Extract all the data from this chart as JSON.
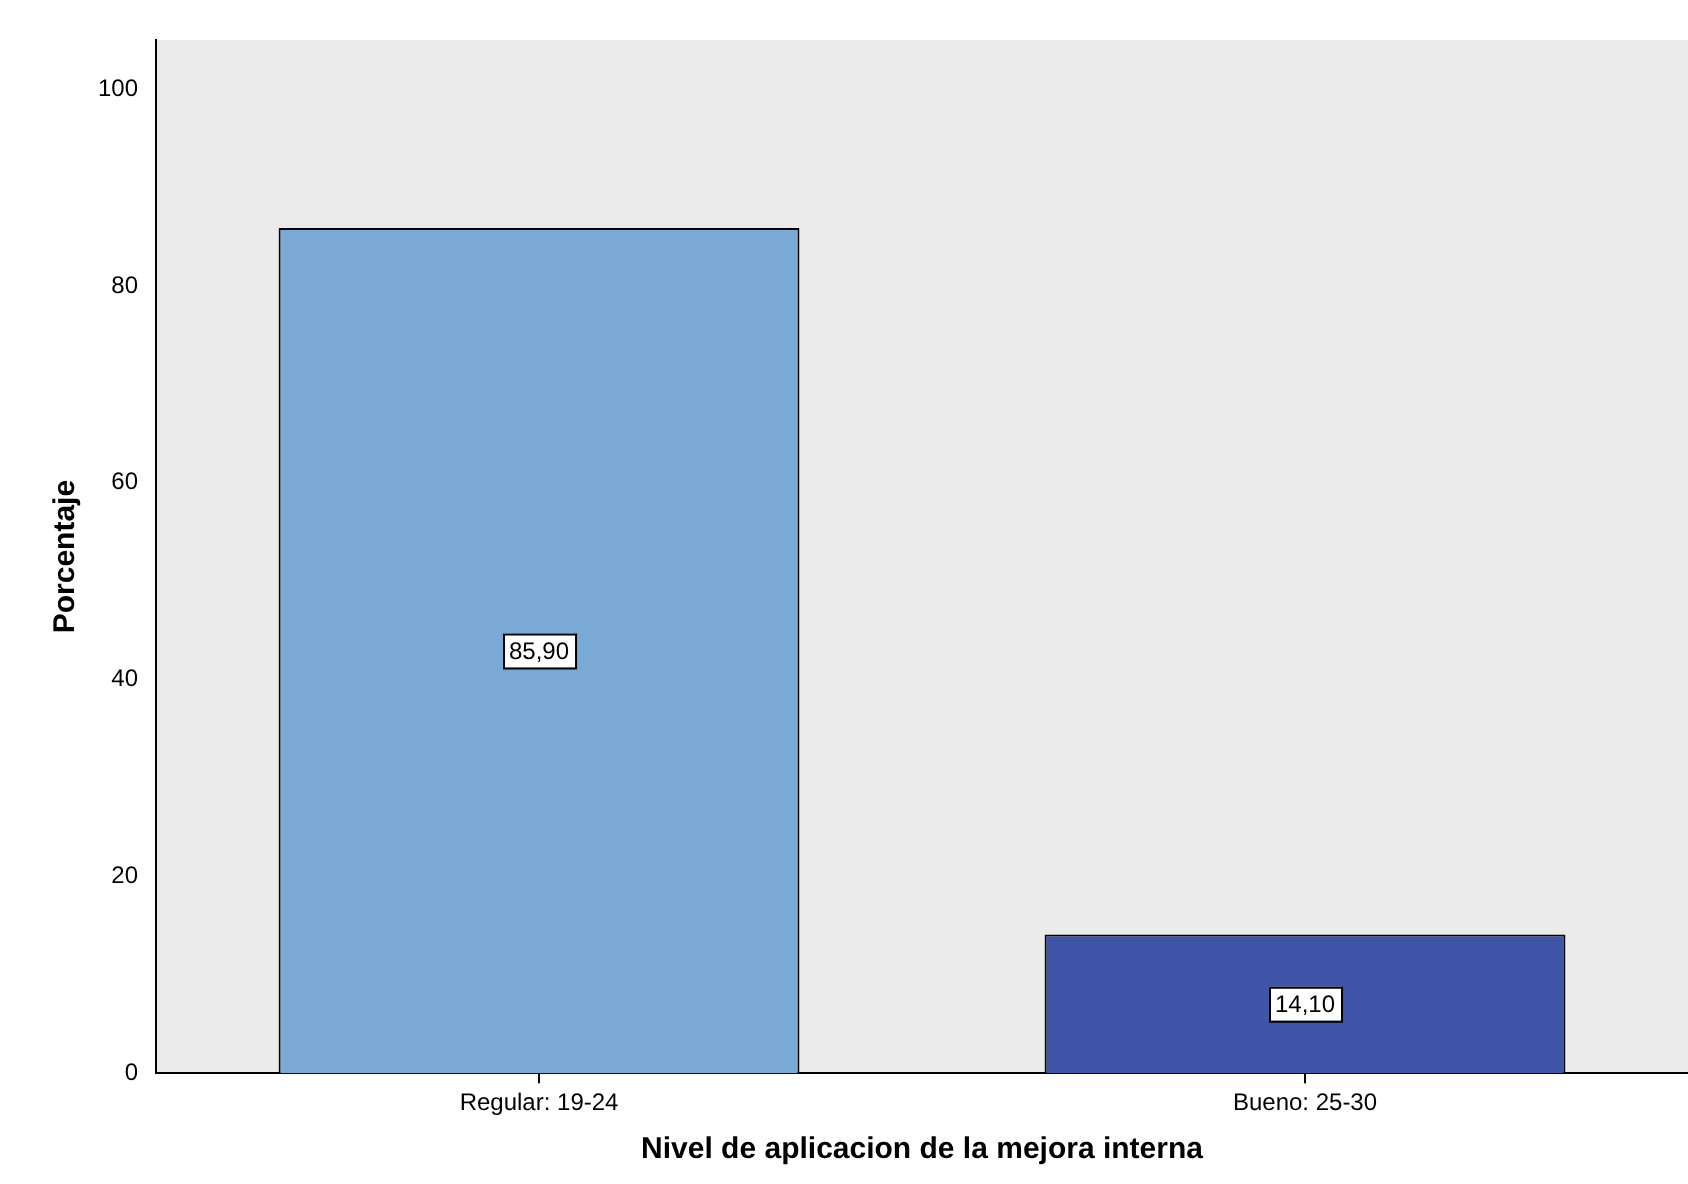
{
  "chart_data": {
    "type": "bar",
    "xlabel": "Nivel de aplicacion de la mejora interna",
    "ylabel": "Porcentaje",
    "categories": [
      "Regular: 19-24",
      "Bueno: 25-30"
    ],
    "values": [
      85.9,
      14.1
    ],
    "colors": [
      "#7aa9d6",
      "#3f56a8"
    ],
    "value_labels": [
      "85,90",
      "14,10"
    ],
    "ylim": [
      0,
      105
    ],
    "yticks": [
      0,
      20,
      40,
      60,
      80,
      100
    ],
    "grid": false,
    "legend": false
  }
}
